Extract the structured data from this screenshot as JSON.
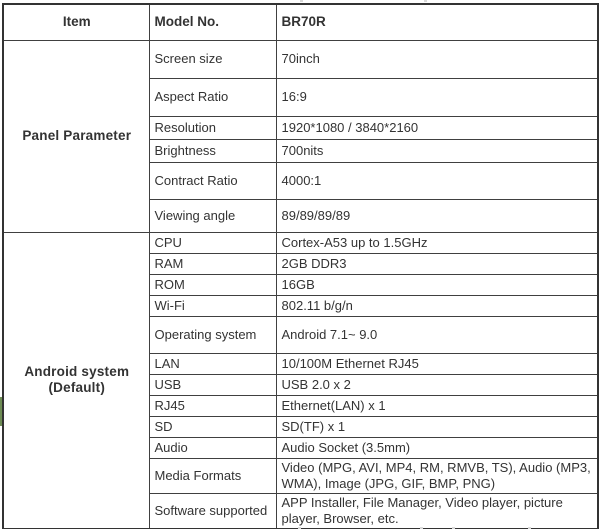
{
  "colors": {
    "border": "#333333",
    "text": "#333333",
    "background": "#ffffff",
    "green_marker": "#6e8c55"
  },
  "table": {
    "header": {
      "item": "Item",
      "model_label": "Model No.",
      "model_value": "BR70R"
    },
    "sections": [
      {
        "title_line1": "Panel Parameter",
        "title_line2": "",
        "rows": [
          {
            "label": "Screen size",
            "value": "70inch"
          },
          {
            "label": "Aspect Ratio",
            "value": "16:9"
          },
          {
            "label": "Resolution",
            "value": "1920*1080 / 3840*2160"
          },
          {
            "label": "Brightness",
            "value": "700nits"
          },
          {
            "label": "Contract Ratio",
            "value": "4000:1"
          },
          {
            "label": "Viewing angle",
            "value": "89/89/89/89"
          }
        ]
      },
      {
        "title_line1": "Android system",
        "title_line2": "(Default)",
        "rows": [
          {
            "label": "CPU",
            "value": "Cortex-A53 up to 1.5GHz"
          },
          {
            "label": "RAM",
            "value": "2GB DDR3"
          },
          {
            "label": "ROM",
            "value": "16GB"
          },
          {
            "label": "Wi-Fi",
            "value": "802.11 b/g/n"
          },
          {
            "label": "Operating system",
            "value": "Android 7.1~ 9.0"
          },
          {
            "label": "LAN",
            "value": "10/100M Ethernet RJ45"
          },
          {
            "label": "USB",
            "value": "USB 2.0 x 2"
          },
          {
            "label": "RJ45",
            "value": "Ethernet(LAN) x 1"
          },
          {
            "label": "SD",
            "value": "SD(TF) x 1"
          },
          {
            "label": "Audio",
            "value": "Audio Socket (3.5mm)"
          },
          {
            "label": "Media Formats",
            "value": "Video (MPG, AVI, MP4, RM, RMVB, TS), Audio (MP3, WMA), Image (JPG, GIF, BMP, PNG)"
          },
          {
            "label": "Software supported",
            "value": "APP Installer, File Manager, Video player, picture player, Browser, etc."
          }
        ]
      }
    ]
  }
}
